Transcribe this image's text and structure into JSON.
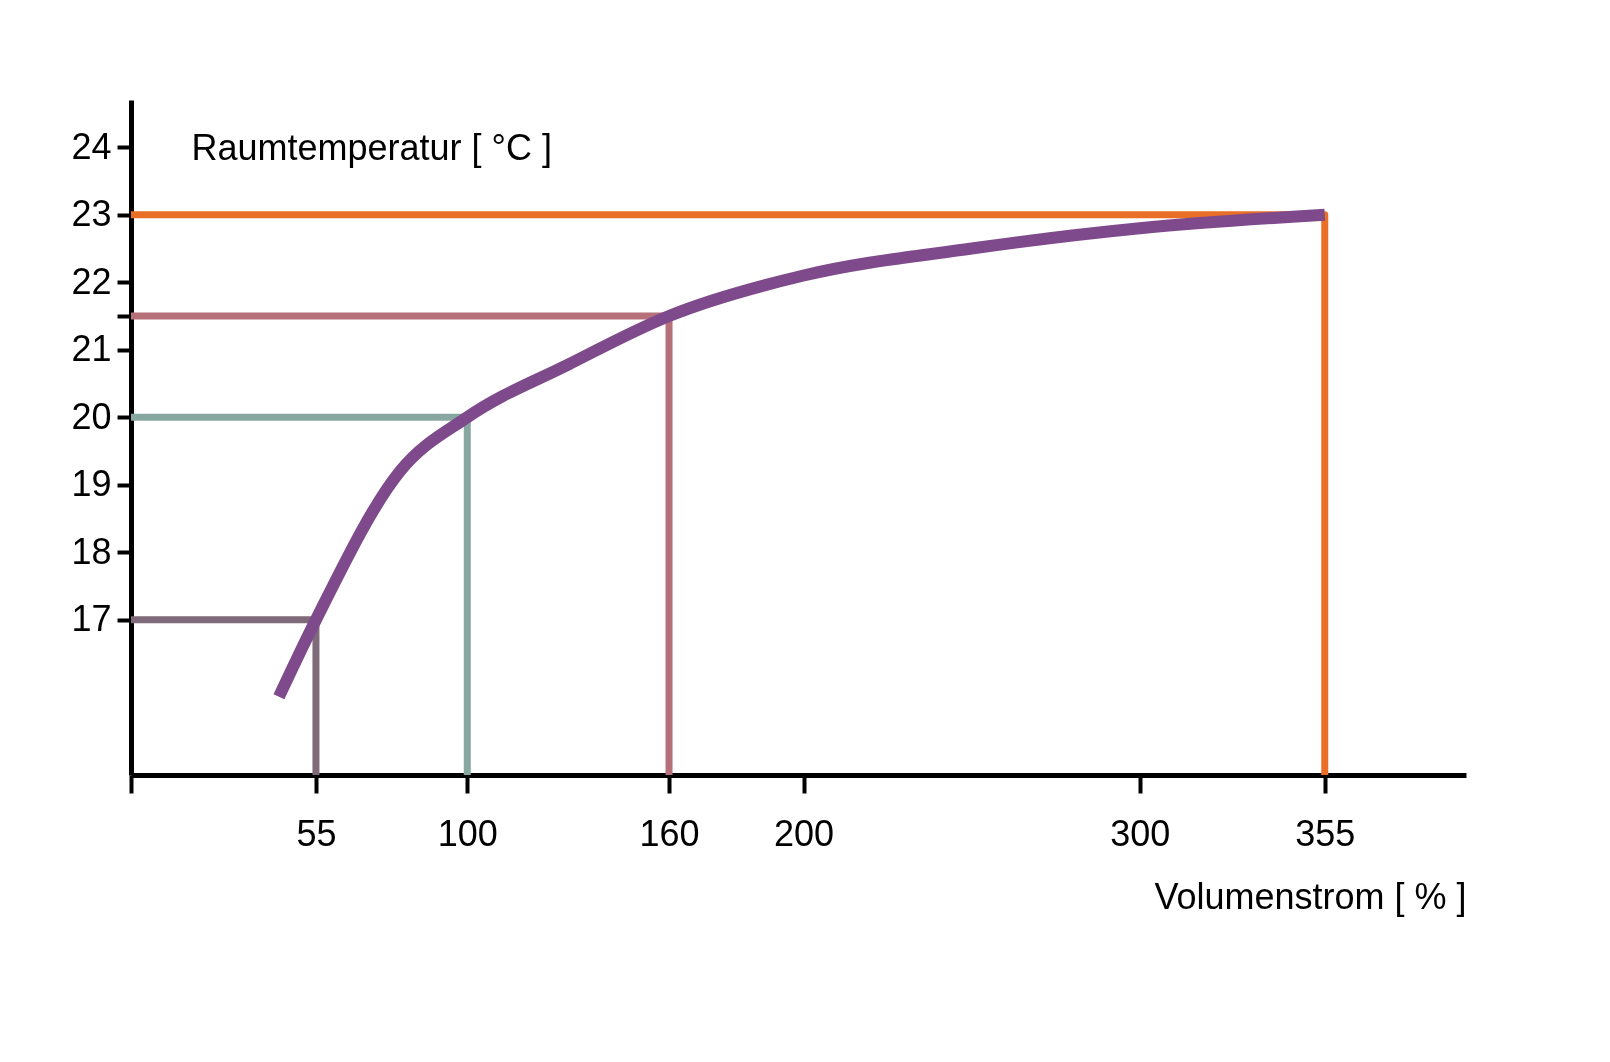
{
  "chart_data": {
    "type": "line",
    "xlabel": "Volumenstrom [ % ]",
    "ylabel": "Raumtemperatur [ °C ]",
    "xlim": [
      0,
      397
    ],
    "ylim": [
      14.7,
      24.7
    ],
    "xticks": [
      {
        "value": 0,
        "label": null
      },
      55,
      100,
      160,
      200,
      300,
      355
    ],
    "yticks": [
      17,
      18,
      19,
      20,
      21,
      {
        "value": 21.5,
        "label": null
      },
      22,
      23,
      24
    ],
    "grid": false,
    "marker": "none",
    "line_style": "solid",
    "series": [
      {
        "color": "#7f6a7a",
        "x": [
          0,
          55,
          55
        ],
        "values": [
          17,
          17,
          14.7
        ]
      },
      {
        "color": "#86a8a0",
        "x": [
          0,
          100,
          100
        ],
        "values": [
          20,
          20,
          14.7
        ]
      },
      {
        "color": "#b57079",
        "x": [
          0,
          160,
          160
        ],
        "values": [
          21.5,
          21.5,
          14.7
        ]
      },
      {
        "color": "#e86f25",
        "x": [
          0,
          355,
          355
        ],
        "values": [
          23,
          23,
          14.7
        ]
      },
      {
        "color": "#7f4a8c",
        "x": [
          44,
          55,
          80,
          100,
          130,
          160,
          200,
          250,
          300,
          355
        ],
        "values": [
          15.86,
          17,
          19.2,
          20,
          20.78,
          21.5,
          22.1,
          22.5,
          22.8,
          23
        ]
      }
    ]
  }
}
